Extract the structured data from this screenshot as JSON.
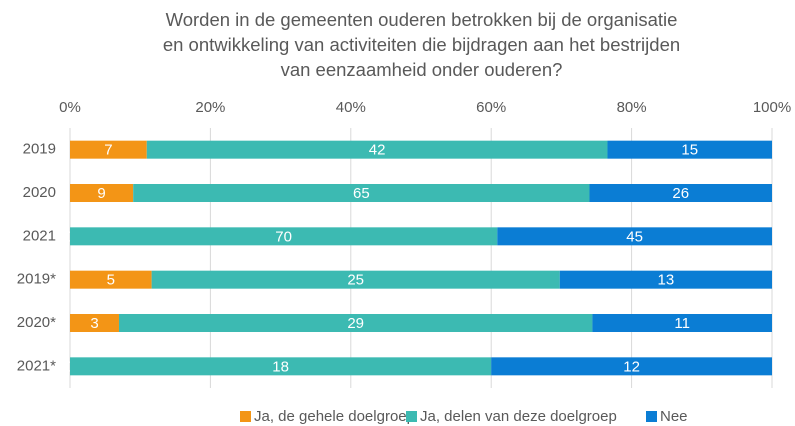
{
  "chart_data": {
    "type": "bar",
    "orientation": "horizontal",
    "stacking": "percent",
    "title": "Worden in de gemeenten ouderen betrokken bij de organisatie\nen ontwikkeling van activiteiten die bijdragen aan het bestrijden\nvan eenzaamheid onder ouderen?",
    "categories": [
      "2019",
      "2020",
      "2021",
      "2019*",
      "2020*",
      "2021*"
    ],
    "series": [
      {
        "name": "Ja, de gehele doelgroep",
        "color": "#f39516",
        "values": [
          7,
          9,
          0,
          5,
          3,
          0
        ]
      },
      {
        "name": "Ja, delen van deze doelgroep",
        "color": "#3cbab2",
        "values": [
          42,
          65,
          70,
          25,
          29,
          18
        ]
      },
      {
        "name": "Nee",
        "color": "#0b7dd4",
        "values": [
          15,
          26,
          45,
          13,
          11,
          12
        ]
      }
    ],
    "xlim": [
      0,
      100
    ],
    "xticks": [
      {
        "value": 0,
        "label": "0%"
      },
      {
        "value": 20,
        "label": "20%"
      },
      {
        "value": 40,
        "label": "40%"
      },
      {
        "value": 60,
        "label": "60%"
      },
      {
        "value": 80,
        "label": "80%"
      },
      {
        "value": 100,
        "label": "100%"
      }
    ],
    "grid": true,
    "legend": "bottom"
  }
}
